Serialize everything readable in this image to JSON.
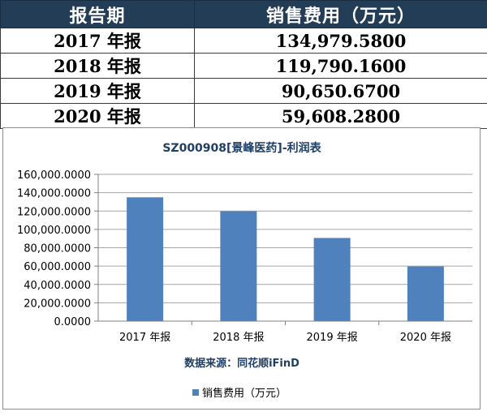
{
  "table": {
    "headers": [
      "报告期",
      "销售费用（万元）"
    ],
    "rows": [
      {
        "period": "2017 年报",
        "value": "134,979.5800"
      },
      {
        "period": "2018 年报",
        "value": "119,790.1600"
      },
      {
        "period": "2019 年报",
        "value": "90,650.6700"
      },
      {
        "period": "2020 年报",
        "value": "59,608.2800"
      }
    ]
  },
  "chart_data": {
    "type": "bar",
    "title": "SZ000908[景峰医药]-利润表",
    "categories": [
      "2017 年报",
      "2018 年报",
      "2019 年报",
      "2020 年报"
    ],
    "series": [
      {
        "name": "销售费用（万元）",
        "values": [
          134979.58,
          119790.16,
          90650.67,
          59608.28
        ],
        "color": "#4f81bd"
      }
    ],
    "ylim": [
      0,
      160000
    ],
    "yticks": [
      "160,000.0000",
      "140,000.0000",
      "120,000.0000",
      "100,000.0000",
      "80,000.0000",
      "60,000.0000",
      "40,000.0000",
      "20,000.0000",
      "0.0000"
    ],
    "grid": true,
    "source_note": "数据来源：同花顺iFinD",
    "legend_position": "bottom"
  }
}
